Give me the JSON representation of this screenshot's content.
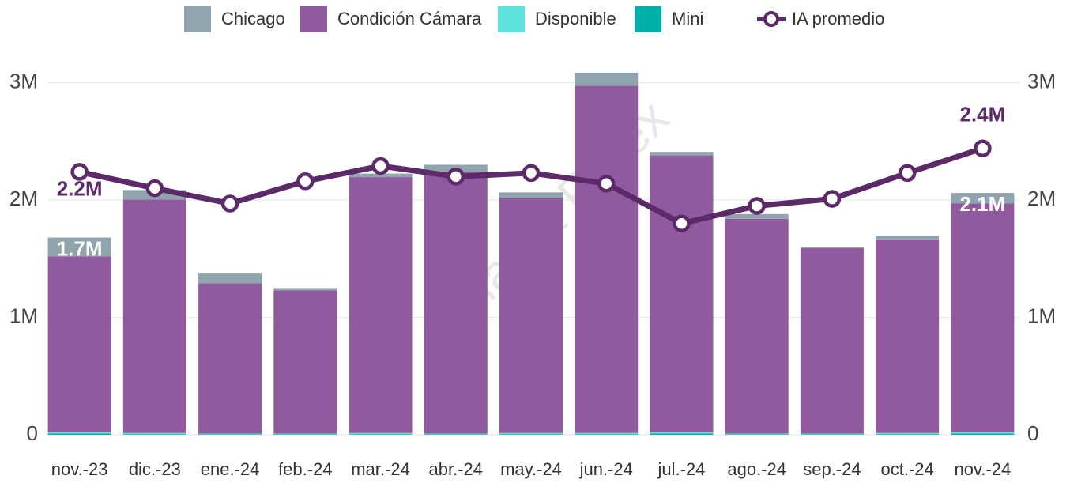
{
  "chart_data": {
    "type": "bar",
    "watermark": "Matba Rofex",
    "categories": [
      "nov.-23",
      "dic.-23",
      "ene.-24",
      "feb.-24",
      "mar.-24",
      "abr.-24",
      "may.-24",
      "jun.-24",
      "jul.-24",
      "ago.-24",
      "sep.-24",
      "oct.-24",
      "nov.-24"
    ],
    "series": [
      {
        "name": "Chicago",
        "color": "#90a4ae",
        "values": [
          0.16,
          0.08,
          0.09,
          0.02,
          0.03,
          0.06,
          0.05,
          0.11,
          0.03,
          0.04,
          0.01,
          0.03,
          0.09
        ]
      },
      {
        "name": "Condición Cámara",
        "color": "#925a9e",
        "values": [
          1.5,
          1.99,
          1.28,
          1.22,
          2.18,
          2.23,
          2.0,
          2.96,
          2.36,
          1.83,
          1.58,
          1.65,
          1.95
        ]
      },
      {
        "name": "Disponible",
        "color": "#5ee0dc",
        "values": [
          0.01,
          0.01,
          0.005,
          0.005,
          0.01,
          0.005,
          0.01,
          0.01,
          0.01,
          0.005,
          0.005,
          0.01,
          0.01
        ]
      },
      {
        "name": "Mini",
        "color": "#00b0a8",
        "values": [
          0.01,
          0.005,
          0.005,
          0.005,
          0.005,
          0.005,
          0.005,
          0.005,
          0.01,
          0.005,
          0.005,
          0.005,
          0.01
        ]
      },
      {
        "name": "IA promedio",
        "type": "line",
        "axis": "y2",
        "color": "#5c2a68",
        "values": [
          2.24,
          2.1,
          1.97,
          2.16,
          2.29,
          2.2,
          2.23,
          2.14,
          1.8,
          1.95,
          2.01,
          2.23,
          2.44
        ],
        "value_labels": [
          "2.2M",
          null,
          null,
          null,
          null,
          null,
          null,
          null,
          null,
          null,
          null,
          null,
          "2.4M"
        ]
      }
    ],
    "bar_labels": [
      "1.7M",
      null,
      null,
      null,
      null,
      null,
      null,
      null,
      null,
      null,
      null,
      null,
      "2.1M"
    ],
    "ylim": [
      0,
      3.3
    ],
    "yticks": [
      0,
      {
        "value": 1,
        "label": "1M"
      },
      {
        "value": 2,
        "label": "2M"
      },
      {
        "value": 3,
        "label": "3M"
      }
    ],
    "y2lim": [
      0,
      3.3
    ],
    "y2ticks": [
      0,
      {
        "value": 1,
        "label": "1M"
      },
      {
        "value": 2,
        "label": "2M"
      },
      {
        "value": 3,
        "label": "3M"
      }
    ],
    "grid": true,
    "legend": "top"
  }
}
